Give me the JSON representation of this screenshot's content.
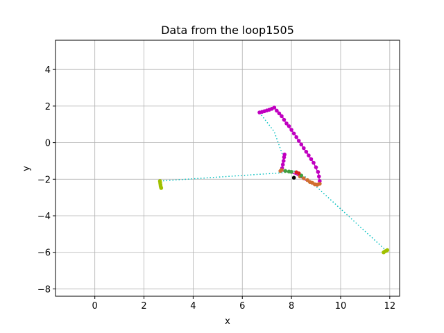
{
  "chart_data": {
    "type": "scatter",
    "title": "Data from the loop1505",
    "xlabel": "x",
    "ylabel": "y",
    "xlim": [
      -1.6,
      12.4
    ],
    "ylim": [
      -8.4,
      5.6
    ],
    "xticks": [
      0,
      2,
      4,
      6,
      8,
      10,
      12
    ],
    "yticks": [
      -8,
      -6,
      -4,
      -2,
      0,
      2,
      4
    ],
    "xtick_labels": [
      "0",
      "2",
      "4",
      "6",
      "8",
      "10",
      "12"
    ],
    "ytick_labels": [
      "−8",
      "−6",
      "−4",
      "−2",
      "0",
      "2",
      "4"
    ],
    "grid": true,
    "colors": {
      "path": "#c000c0",
      "olive": "#a0c000",
      "dotted": "#00bfbf",
      "orange": "#d07030",
      "red": "#d62020",
      "green": "#40a040",
      "blue": "#1f77b4",
      "black": "#000000"
    },
    "series": [
      {
        "style": "dotted-line",
        "color_key": "dotted",
        "points": [
          [
            2.65,
            -2.1
          ],
          [
            7.6,
            -1.65
          ],
          [
            8.1,
            -1.55
          ],
          [
            8.6,
            -1.9
          ],
          [
            11.85,
            -5.9
          ]
        ]
      },
      {
        "style": "dotted-line",
        "color_key": "dotted",
        "points": [
          [
            6.7,
            1.65
          ],
          [
            7.3,
            0.6
          ],
          [
            7.7,
            -0.9
          ]
        ]
      },
      {
        "style": "solid-line",
        "color_key": "path",
        "points": [
          [
            6.7,
            1.65
          ],
          [
            7.3,
            1.92
          ],
          [
            7.6,
            1.5
          ],
          [
            7.8,
            1.0
          ],
          [
            8.0,
            0.7
          ],
          [
            8.3,
            0.1
          ],
          [
            8.6,
            -0.5
          ],
          [
            8.9,
            -1.1
          ],
          [
            9.1,
            -1.7
          ],
          [
            9.15,
            -2.25
          ],
          [
            8.9,
            -2.3
          ],
          [
            8.5,
            -2.0
          ],
          [
            8.2,
            -1.75
          ],
          [
            7.9,
            -1.6
          ],
          [
            7.6,
            -1.55
          ],
          [
            7.65,
            -1.0
          ],
          [
            7.72,
            -0.6
          ]
        ]
      },
      {
        "style": "dots",
        "color_key": "path",
        "points": [
          [
            6.7,
            1.65
          ],
          [
            6.8,
            1.68
          ],
          [
            6.9,
            1.72
          ],
          [
            7.0,
            1.76
          ],
          [
            7.1,
            1.8
          ],
          [
            7.2,
            1.85
          ],
          [
            7.3,
            1.92
          ],
          [
            7.4,
            1.75
          ],
          [
            7.5,
            1.6
          ],
          [
            7.6,
            1.45
          ],
          [
            7.7,
            1.25
          ],
          [
            7.8,
            1.05
          ],
          [
            7.9,
            0.9
          ],
          [
            8.0,
            0.7
          ],
          [
            8.1,
            0.5
          ],
          [
            8.2,
            0.3
          ],
          [
            8.3,
            0.1
          ],
          [
            8.4,
            -0.1
          ],
          [
            8.5,
            -0.3
          ],
          [
            8.6,
            -0.5
          ],
          [
            8.7,
            -0.7
          ],
          [
            8.8,
            -0.9
          ],
          [
            8.9,
            -1.1
          ],
          [
            9.0,
            -1.35
          ],
          [
            9.08,
            -1.6
          ],
          [
            9.12,
            -1.85
          ],
          [
            9.15,
            -2.1
          ],
          [
            7.62,
            -1.4
          ],
          [
            7.65,
            -1.2
          ],
          [
            7.68,
            -1.0
          ],
          [
            7.7,
            -0.8
          ],
          [
            7.72,
            -0.65
          ]
        ]
      },
      {
        "style": "dots",
        "color_key": "orange",
        "points": [
          [
            9.15,
            -2.25
          ],
          [
            9.05,
            -2.3
          ],
          [
            8.95,
            -2.28
          ],
          [
            8.85,
            -2.2
          ],
          [
            8.75,
            -2.15
          ],
          [
            8.65,
            -2.05
          ],
          [
            8.5,
            -1.95
          ],
          [
            8.35,
            -1.85
          ],
          [
            7.55,
            -1.55
          ],
          [
            7.6,
            -1.5
          ]
        ]
      },
      {
        "style": "dots",
        "color_key": "green",
        "points": [
          [
            7.75,
            -1.55
          ],
          [
            7.9,
            -1.58
          ],
          [
            8.0,
            -1.6
          ],
          [
            8.4,
            -1.8
          ]
        ]
      },
      {
        "style": "dots",
        "color_key": "red",
        "points": [
          [
            8.2,
            -1.62
          ],
          [
            8.3,
            -1.68
          ]
        ]
      },
      {
        "style": "dots",
        "color_key": "black",
        "points": [
          [
            8.1,
            -1.92
          ]
        ]
      },
      {
        "style": "dots",
        "color_key": "olive",
        "points": [
          [
            2.65,
            -2.1
          ],
          [
            2.66,
            -2.2
          ],
          [
            2.67,
            -2.3
          ],
          [
            2.68,
            -2.4
          ],
          [
            2.7,
            -2.48
          ],
          [
            11.75,
            -6.0
          ],
          [
            11.8,
            -5.95
          ],
          [
            11.85,
            -5.92
          ],
          [
            11.9,
            -5.88
          ]
        ]
      }
    ]
  }
}
